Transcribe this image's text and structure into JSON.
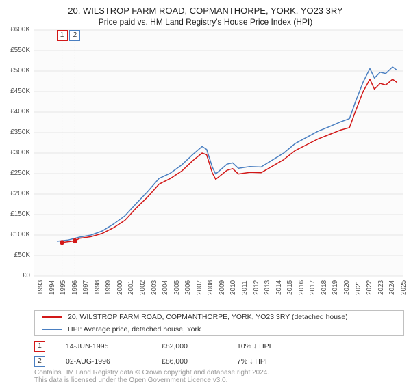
{
  "title": "20, WILSTROP FARM ROAD, COPMANTHORPE, YORK, YO23 3RY",
  "subtitle": "Price paid vs. HM Land Registry's House Price Index (HPI)",
  "chart": {
    "type": "line",
    "plot_bg": "#fbfbfb",
    "grid_color": "#e4e4e4",
    "ylim": [
      0,
      600000
    ],
    "ytick_step": 50000,
    "ytick_labels": [
      "£0",
      "£50K",
      "£100K",
      "£150K",
      "£200K",
      "£250K",
      "£300K",
      "£350K",
      "£400K",
      "£450K",
      "£500K",
      "£550K",
      "£600K"
    ],
    "xlim": [
      1993,
      2025.5
    ],
    "xtick_years": [
      1993,
      1994,
      1995,
      1996,
      1997,
      1998,
      1999,
      2000,
      2001,
      2002,
      2003,
      2004,
      2005,
      2006,
      2007,
      2008,
      2009,
      2010,
      2011,
      2012,
      2013,
      2014,
      2015,
      2016,
      2017,
      2018,
      2019,
      2020,
      2021,
      2022,
      2023,
      2024,
      2025
    ],
    "series": [
      {
        "name": "property",
        "color": "#d21818",
        "line_width": 1.5,
        "points": [
          [
            1995.45,
            82000
          ],
          [
            1996,
            84000
          ],
          [
            1996.59,
            86000
          ],
          [
            1997,
            92000
          ],
          [
            1998,
            96000
          ],
          [
            1999,
            104000
          ],
          [
            2000,
            118000
          ],
          [
            2001,
            136000
          ],
          [
            2002,
            166000
          ],
          [
            2003,
            193000
          ],
          [
            2004,
            224000
          ],
          [
            2005,
            238000
          ],
          [
            2006,
            256000
          ],
          [
            2007,
            282000
          ],
          [
            2007.8,
            300000
          ],
          [
            2008.2,
            296000
          ],
          [
            2008.7,
            252000
          ],
          [
            2009,
            236000
          ],
          [
            2010,
            258000
          ],
          [
            2010.5,
            262000
          ],
          [
            2011,
            249000
          ],
          [
            2012,
            253000
          ],
          [
            2013,
            252000
          ],
          [
            2014,
            268000
          ],
          [
            2015,
            284000
          ],
          [
            2016,
            306000
          ],
          [
            2017,
            320000
          ],
          [
            2018,
            334000
          ],
          [
            2019,
            345000
          ],
          [
            2020,
            356000
          ],
          [
            2020.8,
            362000
          ],
          [
            2021.3,
            400000
          ],
          [
            2022,
            450000
          ],
          [
            2022.6,
            480000
          ],
          [
            2023,
            456000
          ],
          [
            2023.5,
            470000
          ],
          [
            2024,
            466000
          ],
          [
            2024.6,
            480000
          ],
          [
            2025,
            472000
          ]
        ]
      },
      {
        "name": "hpi",
        "color": "#4a7fc1",
        "line_width": 1.5,
        "points": [
          [
            1995.0,
            85000
          ],
          [
            1996,
            88000
          ],
          [
            1997,
            95000
          ],
          [
            1998,
            100000
          ],
          [
            1999,
            110000
          ],
          [
            2000,
            127000
          ],
          [
            2001,
            147000
          ],
          [
            2002,
            177000
          ],
          [
            2003,
            206000
          ],
          [
            2004,
            238000
          ],
          [
            2005,
            251000
          ],
          [
            2006,
            271000
          ],
          [
            2007,
            297000
          ],
          [
            2007.8,
            316000
          ],
          [
            2008.2,
            309000
          ],
          [
            2008.7,
            266000
          ],
          [
            2009,
            249000
          ],
          [
            2010,
            273000
          ],
          [
            2010.5,
            276000
          ],
          [
            2011,
            263000
          ],
          [
            2012,
            267000
          ],
          [
            2013,
            266000
          ],
          [
            2014,
            283000
          ],
          [
            2015,
            300000
          ],
          [
            2016,
            323000
          ],
          [
            2017,
            338000
          ],
          [
            2018,
            353000
          ],
          [
            2019,
            364000
          ],
          [
            2020,
            376000
          ],
          [
            2020.8,
            384000
          ],
          [
            2021.3,
            423000
          ],
          [
            2022,
            473000
          ],
          [
            2022.6,
            506000
          ],
          [
            2023,
            483000
          ],
          [
            2023.5,
            497000
          ],
          [
            2024,
            494000
          ],
          [
            2024.6,
            510000
          ],
          [
            2025,
            502000
          ]
        ]
      }
    ],
    "markers": [
      {
        "n": "1",
        "year": 1995.45,
        "color": "#d21818"
      },
      {
        "n": "2",
        "year": 1996.59,
        "color": "#4a7fc1"
      }
    ],
    "vline_color": "#dcdcdc",
    "marker_point_r": 3.5
  },
  "legend": {
    "rows": [
      {
        "color": "#d21818",
        "text": "20, WILSTROP FARM ROAD, COPMANTHORPE, YORK, YO23 3RY (detached house)"
      },
      {
        "color": "#4a7fc1",
        "text": "HPI: Average price, detached house, York"
      }
    ]
  },
  "trades": [
    {
      "n": "1",
      "color": "#d21818",
      "date": "14-JUN-1995",
      "price": "£82,000",
      "delta": "10% ↓ HPI"
    },
    {
      "n": "2",
      "color": "#4a7fc1",
      "date": "02-AUG-1996",
      "price": "£86,000",
      "delta": "7% ↓ HPI"
    }
  ],
  "footer1": "Contains HM Land Registry data © Crown copyright and database right 2024.",
  "footer2": "This data is licensed under the Open Government Licence v3.0."
}
